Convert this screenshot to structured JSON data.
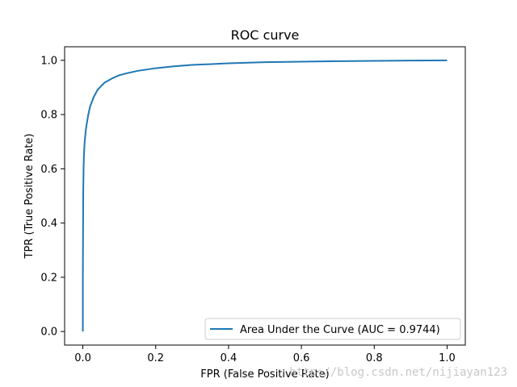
{
  "chart_data": {
    "type": "line",
    "title": "ROC curve",
    "xlabel": "FPR (False Positive Rate)",
    "ylabel": "TPR (True Positive Rate)",
    "xlim": [
      -0.05,
      1.05
    ],
    "ylim": [
      -0.05,
      1.05
    ],
    "xticks": [
      "0.0",
      "0.2",
      "0.4",
      "0.6",
      "0.8",
      "1.0"
    ],
    "yticks": [
      "0.0",
      "0.2",
      "0.4",
      "0.6",
      "0.8",
      "1.0"
    ],
    "grid": false,
    "legend_position": "lower-right",
    "series": [
      {
        "name": "Area Under the Curve (AUC = 0.9744)",
        "color": "#1f77b4",
        "x": [
          0.0,
          0.0,
          0.001,
          0.002,
          0.003,
          0.005,
          0.008,
          0.01,
          0.015,
          0.02,
          0.03,
          0.04,
          0.05,
          0.06,
          0.08,
          0.1,
          0.12,
          0.15,
          0.2,
          0.25,
          0.3,
          0.4,
          0.5,
          0.6,
          0.7,
          0.8,
          0.9,
          1.0
        ],
        "y": [
          0.0,
          0.18,
          0.5,
          0.6,
          0.65,
          0.7,
          0.74,
          0.76,
          0.8,
          0.83,
          0.865,
          0.89,
          0.905,
          0.918,
          0.933,
          0.945,
          0.952,
          0.961,
          0.971,
          0.978,
          0.983,
          0.989,
          0.993,
          0.995,
          0.997,
          0.998,
          0.999,
          1.0
        ]
      }
    ]
  },
  "watermark": "http://blog.csdn.net/nijiayan123"
}
